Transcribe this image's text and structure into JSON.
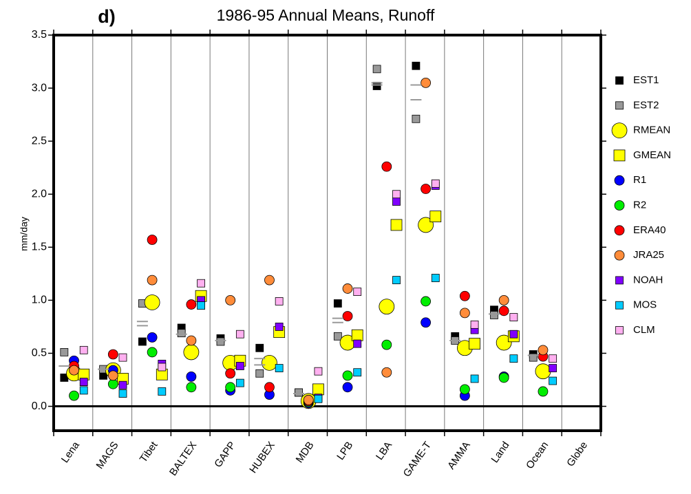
{
  "chart_data": {
    "type": "scatter",
    "panel_label": "d)",
    "title": "1986-95 Annual Means, Runoff",
    "ylabel": "mm/day",
    "categories": [
      "Lena",
      "MAGS",
      "Tibet",
      "BALTEX",
      "GAPP",
      "HUBEX",
      "MDB",
      "LPB",
      "LBA",
      "GAME-T",
      "AMMA",
      "Land",
      "Ocean",
      "Globe"
    ],
    "ylim": [
      -0.23,
      3.5
    ],
    "yticks": [
      {
        "value": 0,
        "label": "0.0"
      },
      0.5,
      {
        "value": 1,
        "label": "1.0"
      },
      1.5,
      {
        "value": 2,
        "label": "2.0"
      },
      2.5,
      {
        "value": 3,
        "label": "3.0"
      },
      3.5
    ],
    "series": [
      {
        "name": "EST1",
        "color": "#000000",
        "shape": "square",
        "size": "small",
        "values": [
          0.27,
          0.29,
          0.61,
          0.74,
          0.64,
          0.55,
          0.13,
          0.97,
          3.02,
          3.21,
          0.66,
          0.91,
          0.49,
          null
        ]
      },
      {
        "name": "EST2",
        "color": "#999999",
        "shape": "square",
        "size": "small",
        "values": [
          0.51,
          0.35,
          0.97,
          0.69,
          0.61,
          0.31,
          0.13,
          0.66,
          3.18,
          2.71,
          0.62,
          0.86,
          0.46,
          null
        ]
      },
      {
        "name": "RMEAN",
        "color": "#ffff00",
        "shape": "circle",
        "size": "large",
        "values": [
          0.31,
          0.34,
          0.98,
          0.51,
          0.41,
          0.41,
          0.05,
          0.6,
          0.94,
          1.71,
          0.55,
          0.6,
          0.33,
          null
        ]
      },
      {
        "name": "GMEAN",
        "color": "#ffff00",
        "shape": "square",
        "size": "large",
        "values": [
          0.3,
          0.26,
          0.3,
          1.04,
          0.43,
          0.7,
          0.16,
          0.67,
          1.71,
          1.79,
          0.59,
          0.66,
          null,
          null
        ]
      },
      {
        "name": "R1",
        "color": "#0000ff",
        "shape": "circle",
        "size": "small",
        "values": [
          0.43,
          0.34,
          0.65,
          0.28,
          0.15,
          0.11,
          0.03,
          0.18,
          null,
          0.79,
          0.1,
          0.28,
          null,
          null
        ]
      },
      {
        "name": "R2",
        "color": "#00ee00",
        "shape": "circle",
        "size": "small",
        "values": [
          0.1,
          0.21,
          0.51,
          0.18,
          0.18,
          null,
          0.04,
          0.29,
          0.58,
          0.99,
          0.16,
          0.27,
          0.14,
          null
        ]
      },
      {
        "name": "ERA40",
        "color": "#ff0000",
        "shape": "circle",
        "size": "small",
        "values": [
          0.38,
          0.49,
          1.57,
          0.96,
          0.31,
          0.18,
          0.05,
          0.85,
          2.26,
          2.05,
          1.04,
          0.9,
          0.47,
          null
        ]
      },
      {
        "name": "JRA25",
        "color": "#ff8c3a",
        "shape": "circle",
        "size": "small",
        "values": [
          0.34,
          0.29,
          1.19,
          0.62,
          1.0,
          1.19,
          0.06,
          1.11,
          0.32,
          3.05,
          0.88,
          1.0,
          0.53,
          null
        ]
      },
      {
        "name": "NOAH",
        "color": "#8000ff",
        "shape": "square",
        "size": "small",
        "values": [
          0.23,
          0.2,
          0.4,
          1.0,
          0.38,
          0.75,
          0.08,
          0.59,
          1.93,
          2.08,
          0.72,
          0.68,
          0.36,
          null
        ]
      },
      {
        "name": "MOS",
        "color": "#00ccff",
        "shape": "square",
        "size": "small",
        "values": [
          0.15,
          0.12,
          0.14,
          0.95,
          0.22,
          0.36,
          0.07,
          0.32,
          1.19,
          1.21,
          0.26,
          0.45,
          0.24,
          null
        ]
      },
      {
        "name": "CLM",
        "color": "#ffb0f0",
        "shape": "square",
        "size": "small",
        "values": [
          0.53,
          0.46,
          0.37,
          1.16,
          0.68,
          0.99,
          0.33,
          1.08,
          2.0,
          2.1,
          0.77,
          0.84,
          0.45,
          null
        ]
      },
      {
        "color": "#999999",
        "shape": "dash",
        "values": [
          0.38,
          0.35,
          0.8,
          0.68,
          0.62,
          0.45,
          0.12,
          0.83,
          3.05,
          3.03,
          0.62,
          0.87,
          0.48,
          null
        ]
      },
      {
        "color": "#999999",
        "shape": "dash",
        "values": [
          null,
          null,
          0.76,
          null,
          null,
          0.39,
          null,
          0.79,
          3.03,
          2.89,
          null,
          null,
          null,
          null
        ]
      }
    ]
  }
}
